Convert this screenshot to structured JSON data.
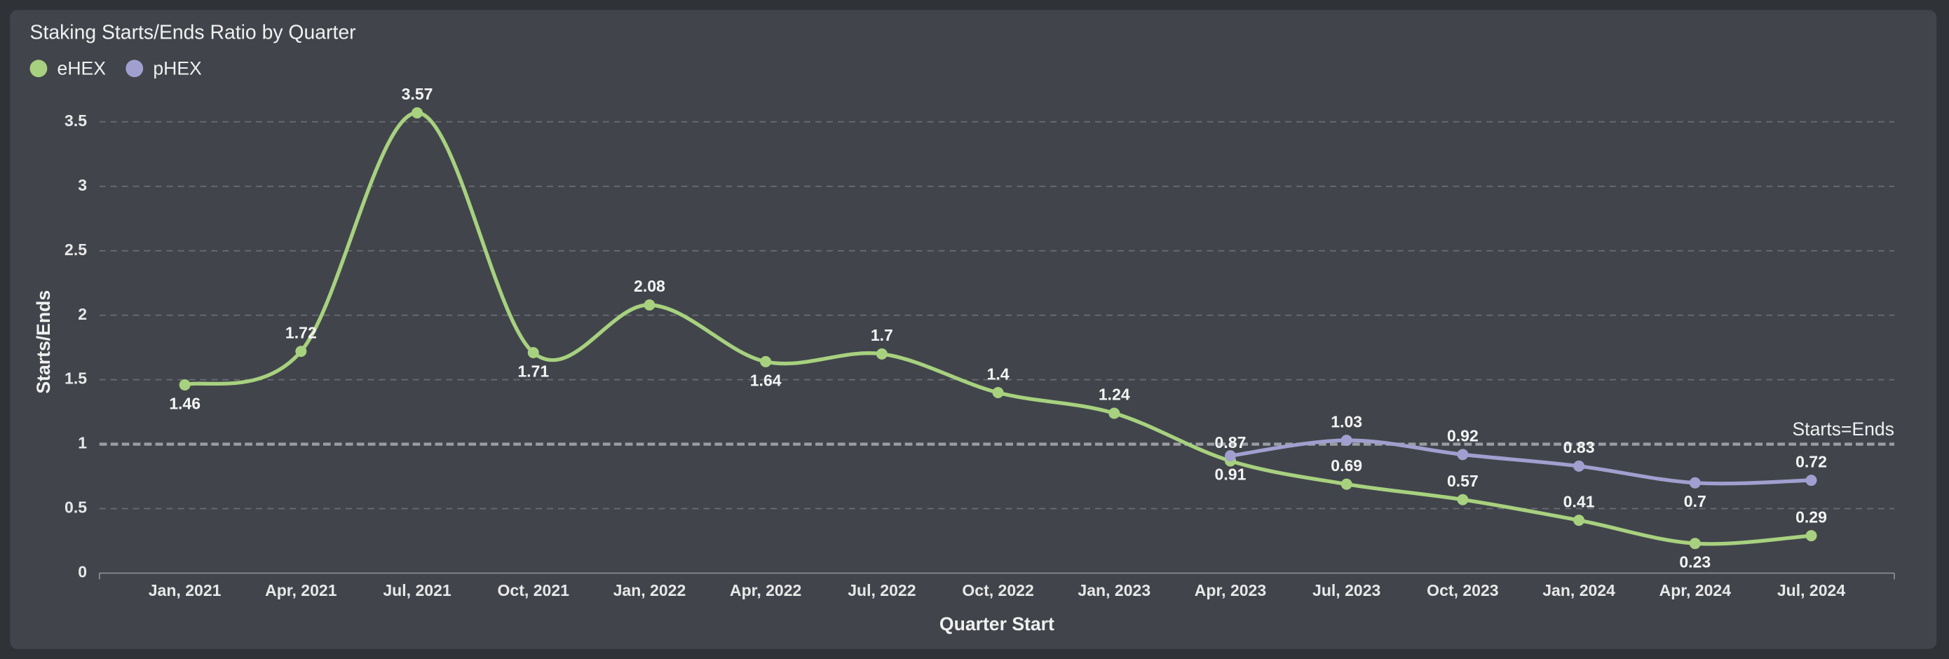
{
  "chart_data": {
    "type": "line",
    "title": "Staking Starts/Ends Ratio by Quarter",
    "x_label": "Quarter Start",
    "y_label": "Starts/Ends",
    "categories": [
      "Jan, 2021",
      "Apr, 2021",
      "Jul, 2021",
      "Oct, 2021",
      "Jan, 2022",
      "Apr, 2022",
      "Jul, 2022",
      "Oct, 2022",
      "Jan, 2023",
      "Apr, 2023",
      "Jul, 2023",
      "Oct, 2023",
      "Jan, 2024",
      "Apr, 2024",
      "Jul, 2024"
    ],
    "series": [
      {
        "name": "eHEX",
        "color": "#a8d17f",
        "values": [
          1.46,
          1.72,
          3.57,
          1.71,
          2.08,
          1.64,
          1.7,
          1.4,
          1.24,
          0.87,
          0.69,
          0.57,
          0.41,
          0.23,
          0.29
        ]
      },
      {
        "name": "pHEX",
        "color": "#a19fcf",
        "values": [
          null,
          null,
          null,
          null,
          null,
          null,
          null,
          null,
          null,
          0.91,
          1.03,
          0.92,
          0.83,
          0.7,
          0.72
        ]
      }
    ],
    "ylim": [
      0,
      3.75
    ],
    "yticks": [
      0,
      0.5,
      1,
      1.5,
      2,
      2.5,
      3,
      3.5
    ],
    "grid": true,
    "legend": "top-left",
    "reference_line": {
      "value": 1,
      "label": "Starts=Ends"
    }
  }
}
